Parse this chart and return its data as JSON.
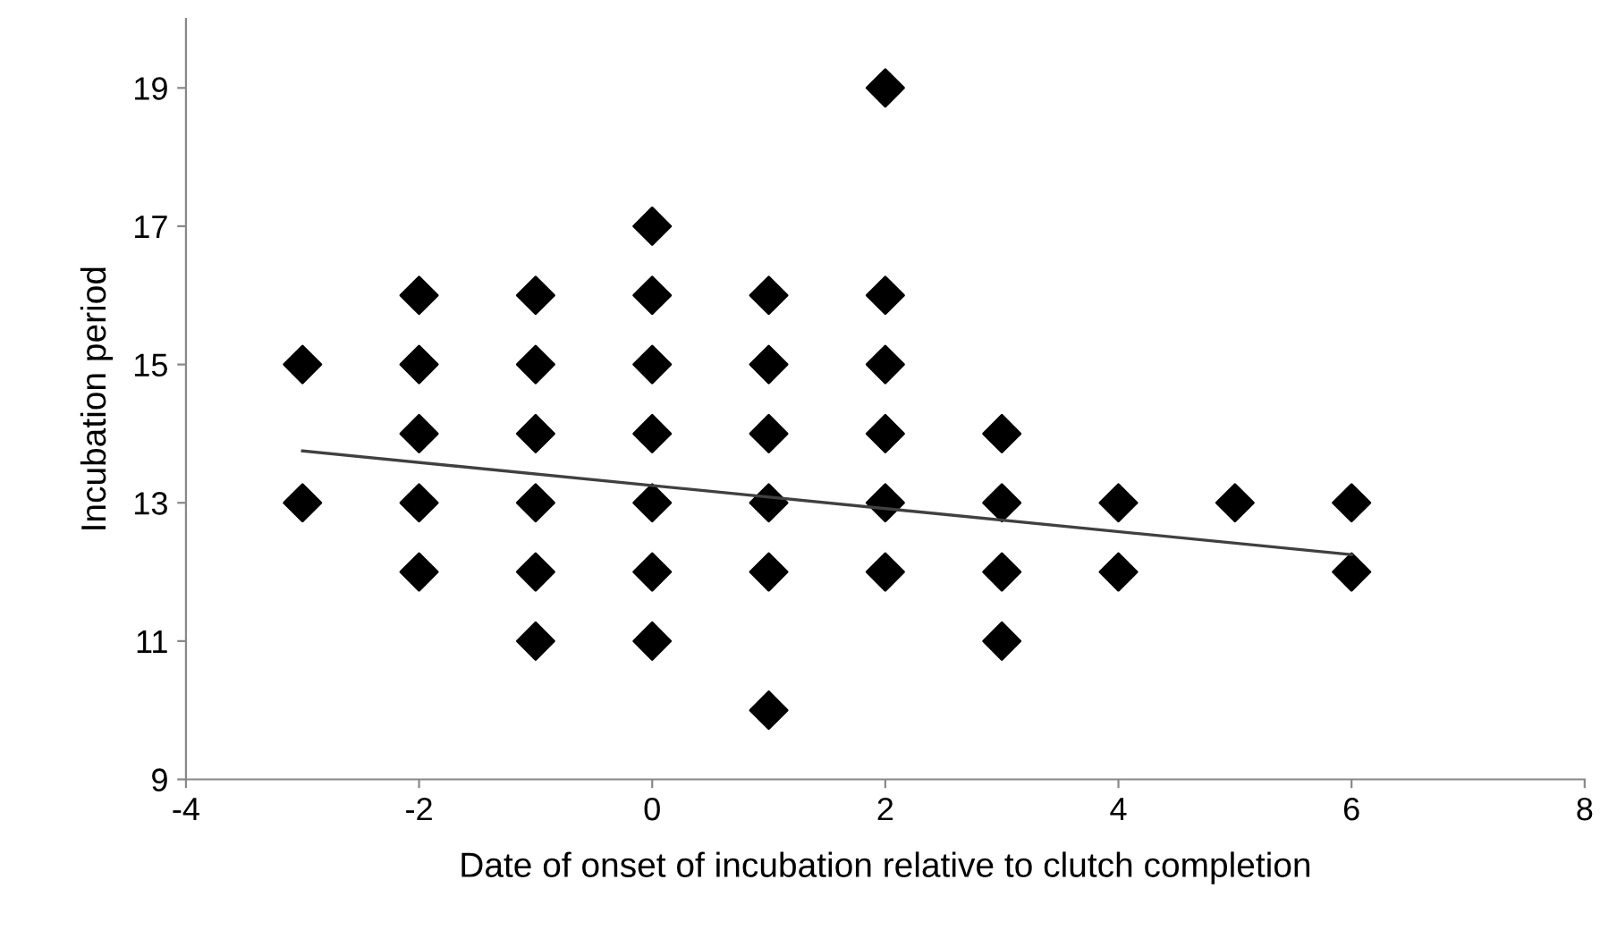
{
  "chart_data": {
    "type": "scatter",
    "xlabel": "Date of onset of incubation relative to clutch completion",
    "ylabel": "Incubation period",
    "xlim": [
      -4,
      8
    ],
    "xticks": [
      -4,
      -2,
      0,
      2,
      4,
      6,
      8
    ],
    "ylim": [
      9,
      20
    ],
    "yticks": [
      9,
      11,
      13,
      15,
      17,
      19
    ],
    "grid": false,
    "legend": false,
    "marker": "diamond",
    "series": [
      {
        "color": "#000000",
        "x": [
          -3,
          -3,
          -2,
          -2,
          -2,
          -2,
          -2,
          -1,
          -1,
          -1,
          -1,
          -1,
          -1,
          0,
          0,
          0,
          0,
          0,
          0,
          0,
          1,
          1,
          1,
          1,
          1,
          1,
          2,
          2,
          2,
          2,
          2,
          2,
          3,
          3,
          3,
          3,
          4,
          4,
          5,
          6,
          6
        ],
        "values": [
          15,
          13,
          16,
          15,
          14,
          13,
          12,
          16,
          15,
          14,
          13,
          12,
          11,
          17,
          16,
          15,
          14,
          13,
          12,
          11,
          16,
          15,
          14,
          13,
          12,
          10,
          19,
          16,
          15,
          14,
          13,
          12,
          14,
          13,
          12,
          11,
          13,
          12,
          13,
          13,
          12
        ]
      },
      {
        "type": "line",
        "color": "#404040",
        "marker": "none",
        "x": [
          -3,
          6
        ],
        "values": [
          13.75,
          12.25
        ]
      }
    ]
  }
}
